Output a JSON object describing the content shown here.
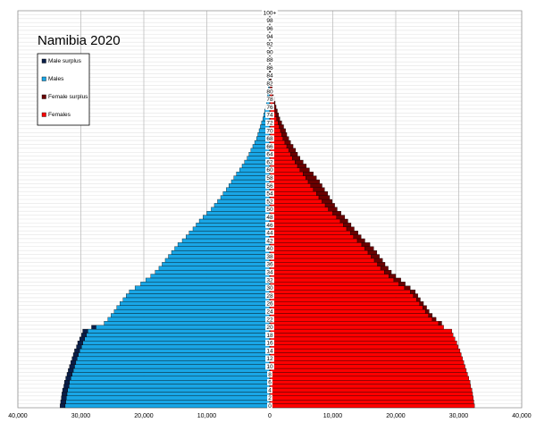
{
  "chart_data": {
    "type": "bar",
    "orientation": "horizontal-pyramid",
    "title": "Namibia 2020",
    "xlim": [
      -40000,
      40000
    ],
    "x_ticks": [
      -40000,
      -30000,
      -20000,
      -10000,
      0,
      10000,
      20000,
      30000,
      40000
    ],
    "x_tick_labels": [
      "40,000",
      "30,000",
      "20,000",
      "10,000",
      "0",
      "10,000",
      "20,000",
      "30,000",
      "40,000"
    ],
    "y_tick_labels": [
      "0",
      "2",
      "4",
      "6",
      "8",
      "10",
      "12",
      "14",
      "16",
      "18",
      "20",
      "22",
      "24",
      "26",
      "28",
      "30",
      "32",
      "34",
      "36",
      "38",
      "40",
      "42",
      "44",
      "46",
      "48",
      "50",
      "52",
      "54",
      "56",
      "58",
      "60",
      "62",
      "64",
      "66",
      "68",
      "70",
      "72",
      "74",
      "76",
      "78",
      "80",
      "82",
      "84",
      "86",
      "88",
      "90",
      "92",
      "94",
      "96",
      "98",
      "100+"
    ],
    "grid": true,
    "legend_position": "top-left",
    "legend": [
      "Male surplus",
      "Males",
      "Female surplus",
      "Females"
    ],
    "colors": {
      "male_surplus": "#0a1f4a",
      "males": "#19a6e6",
      "female_surplus": "#6b0000",
      "females": "#ff0000",
      "grid": "#bfbfbf",
      "bar_outline": "#000000"
    },
    "ages": [
      0,
      1,
      2,
      3,
      4,
      5,
      6,
      7,
      8,
      9,
      10,
      11,
      12,
      13,
      14,
      15,
      16,
      17,
      18,
      19,
      20,
      21,
      22,
      23,
      24,
      25,
      26,
      27,
      28,
      29,
      30,
      31,
      32,
      33,
      34,
      35,
      36,
      37,
      38,
      39,
      40,
      41,
      42,
      43,
      44,
      45,
      46,
      47,
      48,
      49,
      50,
      51,
      52,
      53,
      54,
      55,
      56,
      57,
      58,
      59,
      60,
      61,
      62,
      63,
      64,
      65,
      66,
      67,
      68,
      69,
      70,
      71,
      72,
      73,
      74,
      75,
      76,
      77,
      78,
      79,
      80,
      81,
      82,
      83,
      84,
      85,
      86,
      87,
      88,
      89,
      90,
      91,
      92,
      93,
      94,
      95,
      96,
      97,
      98,
      99,
      100
    ],
    "males": [
      32500,
      32400,
      32300,
      32200,
      32100,
      31900,
      31800,
      31600,
      31400,
      31200,
      31000,
      30800,
      30600,
      30400,
      30200,
      29900,
      29700,
      29400,
      29100,
      28900,
      27600,
      26300,
      25700,
      25200,
      24700,
      24300,
      23800,
      23300,
      22800,
      22300,
      21400,
      20500,
      19700,
      18900,
      18200,
      17600,
      17100,
      16600,
      16100,
      15600,
      15100,
      14600,
      13900,
      13300,
      12800,
      12200,
      11700,
      11200,
      10600,
      10000,
      9300,
      8800,
      8300,
      7800,
      7400,
      6900,
      6500,
      6100,
      5700,
      5300,
      4800,
      4400,
      4000,
      3600,
      3300,
      3000,
      2700,
      2400,
      2100,
      1900,
      1700,
      1500,
      1300,
      1100,
      950,
      800,
      650,
      550,
      450,
      370,
      300,
      240,
      190,
      150,
      110,
      80,
      60,
      40,
      30,
      20,
      14,
      10,
      7,
      5,
      3,
      2,
      1,
      1,
      0,
      0,
      0
    ],
    "male_surplus": [
      800,
      800,
      800,
      800,
      800,
      800,
      800,
      800,
      800,
      800,
      800,
      800,
      800,
      800,
      800,
      800,
      800,
      800,
      800,
      800,
      700,
      0,
      0,
      0,
      0,
      0,
      0,
      0,
      0,
      0,
      0,
      0,
      0,
      0,
      0,
      0,
      0,
      0,
      0,
      0,
      0,
      0,
      0,
      0,
      0,
      0,
      0,
      0,
      0,
      0,
      0,
      0,
      0,
      0,
      0,
      0,
      0,
      0,
      0,
      0,
      0,
      0,
      0,
      0,
      0,
      0,
      0,
      0,
      0,
      0,
      0,
      0,
      0,
      0,
      0,
      0,
      0,
      0,
      0,
      0,
      0,
      0,
      0,
      0,
      0,
      0,
      0,
      0,
      0,
      0,
      0,
      0,
      0,
      0,
      0,
      0,
      0,
      0,
      0,
      0,
      0
    ],
    "females": [
      32500,
      32400,
      32300,
      32200,
      32100,
      31900,
      31800,
      31600,
      31400,
      31200,
      31000,
      30800,
      30600,
      30400,
      30200,
      29900,
      29700,
      29400,
      29100,
      28900,
      27600,
      26800,
      25800,
      25200,
      24700,
      24300,
      23800,
      23300,
      22800,
      22300,
      21400,
      20500,
      19700,
      18900,
      18200,
      17600,
      17100,
      16600,
      16100,
      15600,
      15100,
      14600,
      13900,
      13300,
      12800,
      12200,
      11700,
      11200,
      10600,
      10000,
      9300,
      8800,
      8300,
      7800,
      7400,
      6900,
      6500,
      6100,
      5700,
      5300,
      4800,
      4400,
      4000,
      3600,
      3300,
      3000,
      2700,
      2400,
      2100,
      1900,
      1700,
      1500,
      1300,
      1100,
      950,
      800,
      650,
      550,
      450,
      370,
      300,
      240,
      190,
      150,
      110,
      80,
      60,
      40,
      30,
      20,
      14,
      10,
      7,
      5,
      3,
      2,
      1,
      1,
      0,
      0,
      0
    ],
    "female_surplus": [
      0,
      0,
      0,
      0,
      0,
      0,
      0,
      0,
      0,
      0,
      0,
      0,
      0,
      0,
      0,
      0,
      0,
      0,
      0,
      0,
      0,
      500,
      600,
      600,
      600,
      600,
      600,
      600,
      700,
      800,
      900,
      1000,
      1100,
      1100,
      1100,
      1200,
      1200,
      1300,
      1300,
      1400,
      1400,
      1300,
      1200,
      1200,
      1200,
      1200,
      1200,
      1200,
      1300,
      1300,
      1400,
      1500,
      1600,
      1700,
      1800,
      1800,
      1800,
      1800,
      1700,
      1600,
      1500,
      1400,
      1300,
      1200,
      1100,
      1100,
      1000,
      900,
      900,
      800,
      800,
      700,
      600,
      500,
      450,
      400,
      350,
      300,
      250,
      200,
      180,
      150,
      120,
      100,
      80,
      60,
      40,
      30,
      20,
      15,
      10,
      8,
      5,
      3,
      2,
      1,
      1,
      0,
      0,
      0,
      0
    ]
  }
}
